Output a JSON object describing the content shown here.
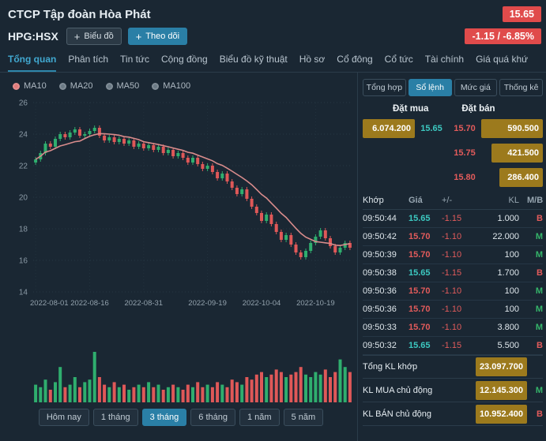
{
  "header": {
    "company": "CTCP Tập đoàn Hòa Phát",
    "ticker": "HPG:HSX",
    "price": "15.65",
    "change": "-1.15 / -6.85%",
    "plus": "+",
    "chart_button": "Biểu đồ",
    "follow_button": "Theo dõi"
  },
  "nav": {
    "items": [
      "Tổng quan",
      "Phân tích",
      "Tin tức",
      "Cộng đồng",
      "Biểu đồ kỹ thuật",
      "Hồ sơ",
      "Cổ đông",
      "Cổ tức",
      "Tài chính",
      "Giá quá khứ"
    ],
    "active_index": 0
  },
  "chart_data": {
    "type": "candlestick",
    "title": "HPG price chart (3 months)",
    "legend": [
      {
        "label": "MA10",
        "color": "#e07a7a",
        "active": true
      },
      {
        "label": "MA20",
        "color": "#6b7a85",
        "active": false
      },
      {
        "label": "MA50",
        "color": "#6b7a85",
        "active": false
      },
      {
        "label": "MA100",
        "color": "#6b7a85",
        "active": false
      }
    ],
    "ylim": [
      14,
      26
    ],
    "yticks": [
      26,
      24,
      22,
      20,
      18,
      16,
      14
    ],
    "tick_indices": [
      0,
      11,
      22,
      35,
      46,
      57
    ],
    "tick_labels": [
      "2022-08-01",
      "2022-08-16",
      "2022-08-31",
      "2022-09-19",
      "2022-10-04",
      "2022-10-19"
    ],
    "closes": [
      22.4,
      22.8,
      23.4,
      23.2,
      23.7,
      24.0,
      23.8,
      24.1,
      24.3,
      23.9,
      24.0,
      24.2,
      24.4,
      23.9,
      23.6,
      23.8,
      23.5,
      23.7,
      23.4,
      23.6,
      23.2,
      23.4,
      23.1,
      23.3,
      23.0,
      23.2,
      22.8,
      23.0,
      22.6,
      22.8,
      22.5,
      22.2,
      22.5,
      22.1,
      21.8,
      22.0,
      21.6,
      21.2,
      21.5,
      21.0,
      20.6,
      20.2,
      20.5,
      19.9,
      19.4,
      19.0,
      18.5,
      18.9,
      18.3,
      17.8,
      17.3,
      17.6,
      17.0,
      16.5,
      16.2,
      16.6,
      17.1,
      17.5,
      17.9,
      17.4,
      16.9,
      16.5,
      16.8,
      17.1,
      16.8
    ],
    "volumes": [
      0.35,
      0.3,
      0.45,
      0.25,
      0.4,
      0.7,
      0.3,
      0.35,
      0.5,
      0.3,
      0.4,
      0.45,
      1.0,
      0.5,
      0.35,
      0.3,
      0.4,
      0.3,
      0.35,
      0.25,
      0.3,
      0.35,
      0.3,
      0.4,
      0.3,
      0.35,
      0.25,
      0.3,
      0.35,
      0.3,
      0.25,
      0.35,
      0.3,
      0.4,
      0.3,
      0.35,
      0.3,
      0.4,
      0.35,
      0.3,
      0.45,
      0.4,
      0.35,
      0.5,
      0.45,
      0.55,
      0.6,
      0.5,
      0.55,
      0.65,
      0.6,
      0.5,
      0.55,
      0.6,
      0.7,
      0.55,
      0.5,
      0.6,
      0.55,
      0.65,
      0.5,
      0.6,
      0.85,
      0.7,
      0.6
    ],
    "up_color": "#2fae6e",
    "down_color": "#df5858",
    "ma_color": "#d98c8c"
  },
  "range_buttons": {
    "items": [
      "Hôm nay",
      "1 tháng",
      "3 tháng",
      "6 tháng",
      "1 năm",
      "5 năm"
    ],
    "active_index": 2
  },
  "order_panel": {
    "tabs": [
      "Tổng hợp",
      "Sổ lệnh",
      "Mức giá",
      "Thống kê"
    ],
    "active_tab_index": 1,
    "bid_header": "Đặt mua",
    "ask_header": "Đặt bán",
    "book": [
      {
        "bid_vol": "6.074.200",
        "bid_price": "15.65",
        "ask_price": "15.70",
        "ask_vol": "590.500"
      },
      {
        "bid_vol": "",
        "bid_price": "",
        "ask_price": "15.75",
        "ask_vol": "421.500"
      },
      {
        "bid_vol": "",
        "bid_price": "",
        "ask_price": "15.80",
        "ask_vol": "286.400"
      }
    ],
    "table_headers": [
      "Khớp",
      "Giá",
      "+/-",
      "KL",
      "M/B"
    ],
    "trades": [
      {
        "time": "09:50:44",
        "price": "15.65",
        "price_color": "teal",
        "change": "-1.15",
        "vol": "1.000",
        "side": "B"
      },
      {
        "time": "09:50:42",
        "price": "15.70",
        "price_color": "red",
        "change": "-1.10",
        "vol": "22.000",
        "side": "M"
      },
      {
        "time": "09:50:39",
        "price": "15.70",
        "price_color": "red",
        "change": "-1.10",
        "vol": "100",
        "side": "M"
      },
      {
        "time": "09:50:38",
        "price": "15.65",
        "price_color": "teal",
        "change": "-1.15",
        "vol": "1.700",
        "side": "B"
      },
      {
        "time": "09:50:36",
        "price": "15.70",
        "price_color": "red",
        "change": "-1.10",
        "vol": "100",
        "side": "M"
      },
      {
        "time": "09:50:36",
        "price": "15.70",
        "price_color": "red",
        "change": "-1.10",
        "vol": "100",
        "side": "M"
      },
      {
        "time": "09:50:33",
        "price": "15.70",
        "price_color": "red",
        "change": "-1.10",
        "vol": "3.800",
        "side": "M"
      },
      {
        "time": "09:50:32",
        "price": "15.65",
        "price_color": "teal",
        "change": "-1.15",
        "vol": "5.500",
        "side": "B"
      }
    ],
    "summary": [
      {
        "label": "Tổng KL khớp",
        "value": "23.097.700",
        "side": ""
      },
      {
        "label": "KL MUA chủ động",
        "value": "12.145.300",
        "side": "M"
      },
      {
        "label": "KL BÁN chủ động",
        "value": "10.952.400",
        "side": "B"
      }
    ]
  },
  "colors": {
    "background": "#1a2733",
    "accent_teal": "#2a7fa6",
    "badge_red": "#e04b4b",
    "price_up_teal": "#3cc8c0",
    "price_down_red": "#e25b5b",
    "buy_green": "#35b56a",
    "gold_volume": "#9c7a1d",
    "nav_active": "#41a8d0"
  }
}
